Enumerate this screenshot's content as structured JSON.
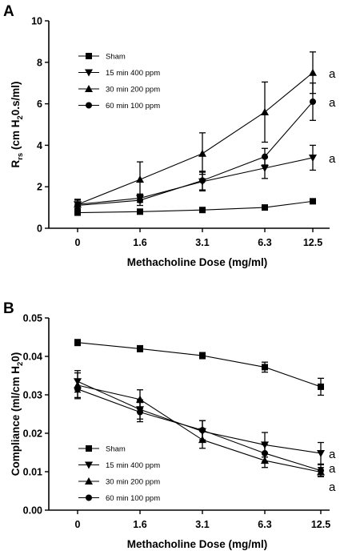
{
  "chart_data": [
    {
      "type": "line",
      "panel_label": "A",
      "x": [
        "0",
        "1.6",
        "3.1",
        "6.3",
        "12.5"
      ],
      "xlabel": "Methacholine Dose (mg/ml)",
      "ylabel_main": "R",
      "ylabel_sub": "rs",
      "ylabel_rest": " (cm H",
      "ylabel_sub2": "2",
      "ylabel_tail": "0.s/ml)",
      "ylim": [
        0,
        10
      ],
      "yticks": [
        0,
        2,
        4,
        6,
        8,
        10
      ],
      "ytick_labels": [
        "0",
        "2",
        "4",
        "6",
        "8",
        "10"
      ],
      "grid": false,
      "legend_position": "top-left",
      "series": [
        {
          "name": "Sham",
          "marker": "square",
          "values": [
            0.75,
            0.8,
            0.88,
            1.0,
            1.3
          ],
          "errors": [
            0.04,
            0.04,
            0.04,
            0.05,
            0.07
          ]
        },
        {
          "name": "15 min 400 ppm",
          "marker": "triangle-down",
          "values": [
            1.15,
            1.45,
            2.25,
            2.9,
            3.4
          ],
          "errors": [
            0.2,
            0.2,
            0.45,
            0.5,
            0.6
          ]
        },
        {
          "name": "30 min 200 ppm",
          "marker": "triangle-up",
          "values": [
            1.15,
            2.35,
            3.6,
            5.6,
            7.5
          ],
          "errors": [
            0.25,
            0.85,
            1.0,
            1.45,
            1.0
          ]
        },
        {
          "name": "60 min 100 ppm",
          "marker": "circle",
          "values": [
            1.1,
            1.35,
            2.3,
            3.45,
            6.1
          ],
          "errors": [
            0.15,
            0.25,
            0.45,
            0.4,
            0.9
          ]
        }
      ],
      "annotations": [
        "a",
        "a",
        "a"
      ]
    },
    {
      "type": "line",
      "panel_label": "B",
      "x": [
        "0",
        "1.6",
        "3.1",
        "6.3",
        "12.5"
      ],
      "xlabel": "Methacholine Dose (mg/ml)",
      "ylabel_main": "Compliance (ml/cm H",
      "ylabel_sub2": "2",
      "ylabel_tail": "0)",
      "ylim": [
        0,
        0.05
      ],
      "yticks": [
        0,
        0.01,
        0.02,
        0.03,
        0.04,
        0.05
      ],
      "ytick_labels": [
        "0.00",
        "0.01",
        "0.02",
        "0.03",
        "0.04",
        "0.05"
      ],
      "grid": false,
      "legend_position": "bottom-left",
      "series": [
        {
          "name": "Sham",
          "marker": "square",
          "values": [
            0.0436,
            0.042,
            0.0402,
            0.0372,
            0.0321
          ],
          "errors": [
            0.0008,
            0.0008,
            0.0008,
            0.0013,
            0.0022
          ]
        },
        {
          "name": "15 min 400 ppm",
          "marker": "triangle-down",
          "values": [
            0.0335,
            0.0262,
            0.0205,
            0.017,
            0.0148
          ],
          "errors": [
            0.0028,
            0.0025,
            0.0028,
            0.0032,
            0.0028
          ]
        },
        {
          "name": "30 min 200 ppm",
          "marker": "triangle-up",
          "values": [
            0.0325,
            0.0288,
            0.0183,
            0.0129,
            0.0099
          ],
          "errors": [
            0.0032,
            0.0025,
            0.0022,
            0.0018,
            0.0012
          ]
        },
        {
          "name": "60 min 100 ppm",
          "marker": "circle",
          "values": [
            0.0315,
            0.0255,
            0.0208,
            0.0148,
            0.0103
          ],
          "errors": [
            0.0025,
            0.0025,
            0.0025,
            0.0022,
            0.0015
          ]
        }
      ],
      "annotations": [
        "a",
        "a",
        "a"
      ]
    }
  ]
}
